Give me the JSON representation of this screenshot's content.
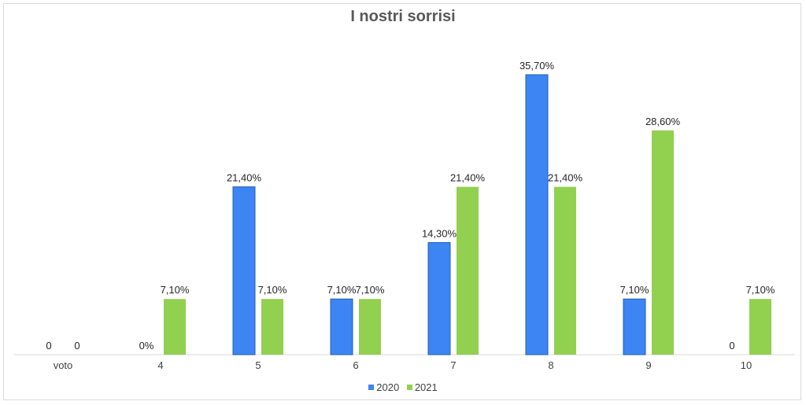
{
  "chart_data": {
    "type": "bar",
    "title": "I nostri sorrisi",
    "categories": [
      "voto",
      "4",
      "5",
      "6",
      "7",
      "8",
      "9",
      "10"
    ],
    "series": [
      {
        "name": "2020",
        "color": "#3d85f2",
        "values": [
          0,
          0,
          21.4,
          7.1,
          14.3,
          35.7,
          7.1,
          0
        ],
        "labels": [
          "0",
          "0%",
          "21,40%",
          "7,10%",
          "14,30%",
          "35,70%",
          "7,10%",
          "0"
        ]
      },
      {
        "name": "2021",
        "color": "#92d050",
        "values": [
          0,
          7.1,
          7.1,
          7.1,
          21.4,
          21.4,
          28.6,
          7.1
        ],
        "labels": [
          "0",
          "7,10%",
          "7,10%",
          "7,10%",
          "21,40%",
          "21,40%",
          "28,60%",
          "7,10%"
        ]
      }
    ],
    "ylim": [
      0,
      36
    ],
    "grid": false,
    "legend_position": "bottom"
  }
}
